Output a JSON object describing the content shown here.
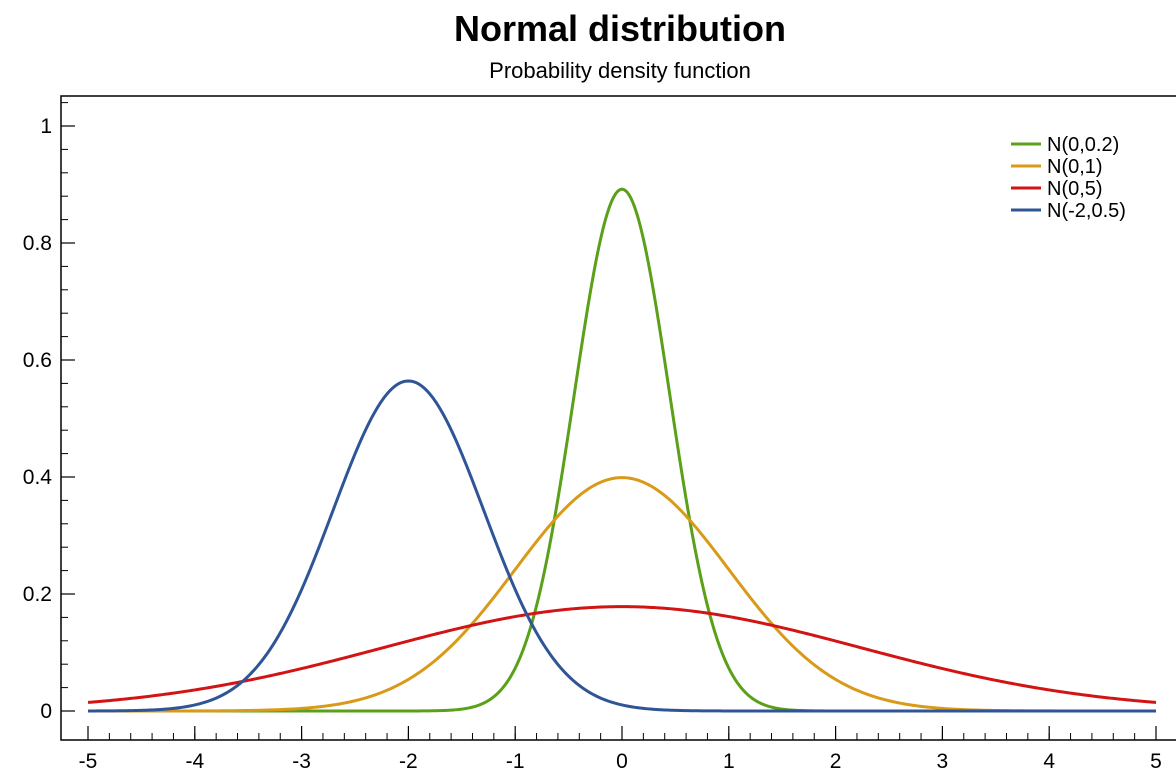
{
  "chart_data": {
    "type": "line",
    "title": "Normal distribution",
    "subtitle": "Probability density function",
    "xlabel": "",
    "ylabel": "",
    "xlim": [
      -5,
      5
    ],
    "ylim": [
      0,
      1
    ],
    "x_ticks": [
      -5,
      -4,
      -3,
      -2,
      -1,
      0,
      1,
      2,
      3,
      4,
      5
    ],
    "x_tick_labels": [
      "-5",
      "-4",
      "-3",
      "-2",
      "-1",
      "0",
      "1",
      "2",
      "3",
      "4",
      "5"
    ],
    "y_ticks": [
      0,
      0.2,
      0.4,
      0.6,
      0.8,
      1
    ],
    "y_tick_labels": [
      "0",
      "0.2",
      "0.4",
      "0.6",
      "0.8",
      "1"
    ],
    "grid": false,
    "legend_position": "top-right",
    "series": [
      {
        "name": "N(0,0.2)",
        "mean": 0,
        "variance": 0.2,
        "color": "#5aa019"
      },
      {
        "name": "N(0,1)",
        "mean": 0,
        "variance": 1,
        "color": "#d99a19"
      },
      {
        "name": "N(0,5)",
        "mean": 0,
        "variance": 5,
        "color": "#d21414"
      },
      {
        "name": "N(-2,0.5)",
        "mean": -2,
        "variance": 0.5,
        "color": "#2f5596"
      }
    ]
  }
}
